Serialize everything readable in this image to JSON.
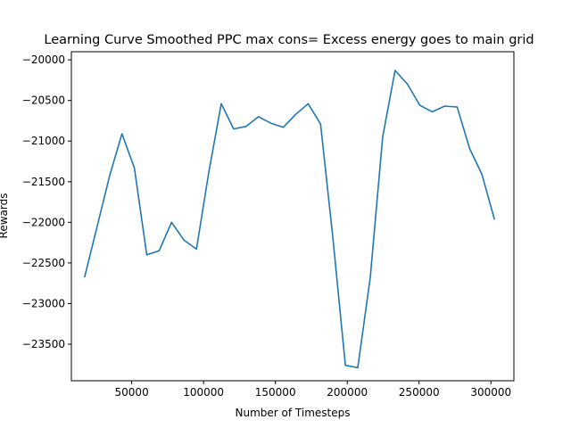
{
  "chart_data": {
    "type": "line",
    "title": "Learning Curve Smoothed PPC max cons= Excess energy goes to main grid",
    "xlabel": "Number of Timesteps",
    "ylabel": "Rewards",
    "xlim": [
      8000,
      316000
    ],
    "ylim": [
      -23950,
      -19900
    ],
    "xticks": [
      50000,
      100000,
      150000,
      200000,
      250000,
      300000
    ],
    "yticks": [
      -20000,
      -20500,
      -21000,
      -21500,
      -22000,
      -22500,
      -23000,
      -23500
    ],
    "grid": false,
    "legend": "none",
    "series": [
      {
        "color": "#1f77b4",
        "x": [
          17280,
          25920,
          34560,
          43200,
          51840,
          60480,
          69120,
          77760,
          86400,
          95040,
          103680,
          112320,
          120960,
          129600,
          138240,
          146880,
          155520,
          164160,
          172800,
          181440,
          190080,
          198720,
          207360,
          216000,
          224640,
          233280,
          241920,
          250560,
          259200,
          267840,
          276480,
          285120,
          293760,
          302400
        ],
        "values": [
          -22670,
          -22050,
          -21430,
          -20910,
          -21330,
          -22400,
          -22350,
          -22000,
          -22220,
          -22330,
          -21380,
          -20540,
          -20850,
          -20820,
          -20700,
          -20780,
          -20830,
          -20670,
          -20540,
          -20790,
          -22200,
          -23760,
          -23790,
          -22680,
          -20950,
          -20130,
          -20300,
          -20560,
          -20640,
          -20570,
          -20580,
          -21090,
          -21410,
          -21960
        ]
      }
    ]
  }
}
